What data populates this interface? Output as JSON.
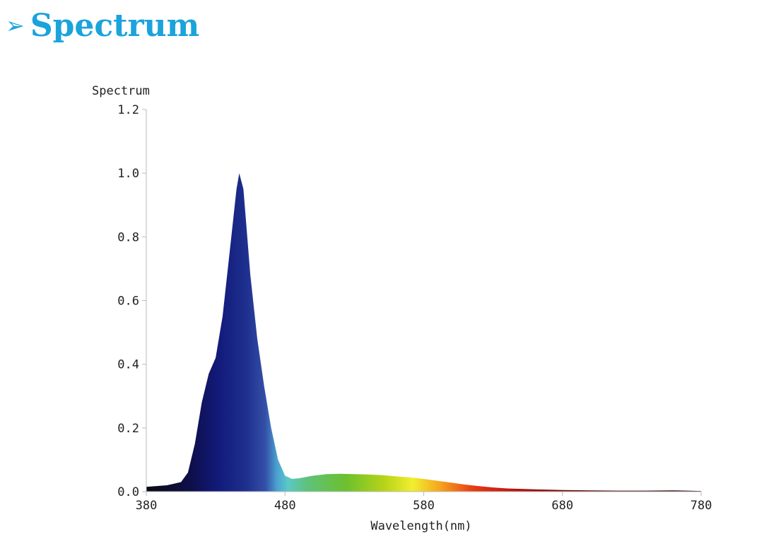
{
  "heading": {
    "bullet": "➢",
    "text": "Spectrum"
  },
  "chart_data": {
    "type": "area",
    "title": "",
    "ylabel": "Spectrum",
    "xlabel": "Wavelength(nm)",
    "xlim": [
      380,
      780
    ],
    "ylim": [
      0,
      1.2
    ],
    "x_ticks": [
      380,
      480,
      580,
      680,
      780
    ],
    "x_tick_labels": [
      "380",
      "480",
      "580",
      "680",
      "780"
    ],
    "y_ticks": [
      0,
      0.2,
      0.4,
      0.6,
      0.8,
      1.0,
      1.2
    ],
    "y_tick_labels": [
      "0.0",
      "0.2",
      "0.4",
      "0.6",
      "0.8",
      "1.0",
      "1.2"
    ],
    "grid": false,
    "fill": "wavelength-color gradient",
    "series": [
      {
        "x": [
          380,
          395,
          405,
          410,
          415,
          420,
          425,
          430,
          435,
          440,
          445,
          447,
          450,
          455,
          460,
          465,
          470,
          475,
          480,
          485,
          490,
          500,
          510,
          520,
          530,
          540,
          550,
          560,
          570,
          580,
          590,
          600,
          610,
          620,
          630,
          640,
          660,
          680,
          700,
          720,
          740,
          760,
          770,
          780
        ],
        "y": [
          0.015,
          0.02,
          0.03,
          0.06,
          0.15,
          0.28,
          0.37,
          0.42,
          0.55,
          0.75,
          0.95,
          1.0,
          0.95,
          0.68,
          0.48,
          0.33,
          0.2,
          0.1,
          0.05,
          0.04,
          0.042,
          0.05,
          0.055,
          0.056,
          0.055,
          0.054,
          0.052,
          0.048,
          0.045,
          0.04,
          0.034,
          0.028,
          0.022,
          0.017,
          0.013,
          0.01,
          0.007,
          0.005,
          0.004,
          0.003,
          0.003,
          0.004,
          0.003,
          0.002
        ]
      }
    ]
  }
}
